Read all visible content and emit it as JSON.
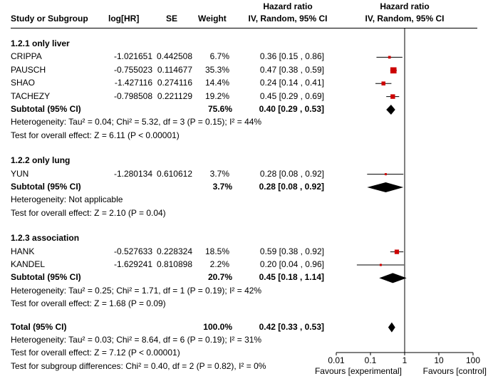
{
  "header": {
    "study": "Study or Subgroup",
    "loghr": "log[HR]",
    "se": "SE",
    "weight": "Weight",
    "hr_title": "Hazard ratio",
    "hr_sub": "IV, Random, 95% CI",
    "plot_title": "Hazard ratio",
    "plot_sub": "IV, Random, 95% CI"
  },
  "chart_data": {
    "type": "forest",
    "scale": "log",
    "xlim": [
      0.01,
      100
    ],
    "ticks": [
      0.01,
      0.1,
      1,
      10,
      100
    ],
    "tick_labels": [
      "0.01",
      "0.1",
      "1",
      "10",
      "100"
    ],
    "null_line": 1,
    "favours_left": "Favours [experimental]",
    "favours_right": "Favours [control]",
    "colors": {
      "study_marker": "#cc0000",
      "line": "#000000",
      "diamond": "#000000"
    },
    "subgroups": [
      {
        "title": "1.2.1 only liver",
        "studies": [
          {
            "name": "CRIPPA",
            "loghr": "-1.021651",
            "se": "0.442508",
            "weight_label": "6.7%",
            "ci_label": "0.36 [0.15 , 0.86]",
            "hr": 0.36,
            "lower": 0.15,
            "upper": 0.86,
            "weight": 6.7
          },
          {
            "name": "PAUSCH",
            "loghr": "-0.755023",
            "se": "0.114677",
            "weight_label": "35.3%",
            "ci_label": "0.47 [0.38 , 0.59]",
            "hr": 0.47,
            "lower": 0.38,
            "upper": 0.59,
            "weight": 35.3
          },
          {
            "name": "SHAO",
            "loghr": "-1.427116",
            "se": "0.274116",
            "weight_label": "14.4%",
            "ci_label": "0.24 [0.14 , 0.41]",
            "hr": 0.24,
            "lower": 0.14,
            "upper": 0.41,
            "weight": 14.4
          },
          {
            "name": "TACHEZY",
            "loghr": "-0.798508",
            "se": "0.221129",
            "weight_label": "19.2%",
            "ci_label": "0.45 [0.29 , 0.69]",
            "hr": 0.45,
            "lower": 0.29,
            "upper": 0.69,
            "weight": 19.2
          }
        ],
        "subtotal": {
          "label": "Subtotal (95% CI)",
          "weight_label": "75.6%",
          "ci_label": "0.40 [0.29 , 0.53]",
          "hr": 0.4,
          "lower": 0.29,
          "upper": 0.53
        },
        "heterogeneity": "Heterogeneity: Tau² = 0.04; Chi² = 5.32, df = 3 (P = 0.15); I² = 44%",
        "overall_effect": "Test for overall effect: Z = 6.11 (P < 0.00001)"
      },
      {
        "title": "1.2.2 only lung",
        "studies": [
          {
            "name": "YUN",
            "loghr": "-1.280134",
            "se": "0.610612",
            "weight_label": "3.7%",
            "ci_label": "0.28 [0.08 , 0.92]",
            "hr": 0.28,
            "lower": 0.08,
            "upper": 0.92,
            "weight": 3.7
          }
        ],
        "subtotal": {
          "label": "Subtotal (95% CI)",
          "weight_label": "3.7%",
          "ci_label": "0.28 [0.08 , 0.92]",
          "hr": 0.28,
          "lower": 0.08,
          "upper": 0.92
        },
        "heterogeneity": "Heterogeneity: Not applicable",
        "overall_effect": "Test for overall effect: Z = 2.10 (P = 0.04)"
      },
      {
        "title": "1.2.3 association",
        "studies": [
          {
            "name": "HANK",
            "loghr": "-0.527633",
            "se": "0.228324",
            "weight_label": "18.5%",
            "ci_label": "0.59 [0.38 , 0.92]",
            "hr": 0.59,
            "lower": 0.38,
            "upper": 0.92,
            "weight": 18.5
          },
          {
            "name": "KANDEL",
            "loghr": "-1.629241",
            "se": "0.810898",
            "weight_label": "2.2%",
            "ci_label": "0.20 [0.04 , 0.96]",
            "hr": 0.2,
            "lower": 0.04,
            "upper": 0.96,
            "weight": 2.2
          }
        ],
        "subtotal": {
          "label": "Subtotal (95% CI)",
          "weight_label": "20.7%",
          "ci_label": "0.45 [0.18 , 1.14]",
          "hr": 0.45,
          "lower": 0.18,
          "upper": 1.14
        },
        "heterogeneity": "Heterogeneity: Tau² = 0.25; Chi² = 1.71, df = 1 (P = 0.19); I² = 42%",
        "overall_effect": "Test for overall effect: Z = 1.68 (P = 0.09)"
      }
    ],
    "total": {
      "label": "Total (95% CI)",
      "weight_label": "100.0%",
      "ci_label": "0.42 [0.33 , 0.53]",
      "hr": 0.42,
      "lower": 0.33,
      "upper": 0.53,
      "heterogeneity": "Heterogeneity: Tau² = 0.03; Chi² = 8.64, df = 6 (P = 0.19); I² = 31%",
      "overall_effect": "Test for overall effect: Z = 7.12 (P < 0.00001)",
      "subgroup_differences": "Test for subgroup differences: Chi² = 0.40, df = 2 (P = 0.82), I² = 0%"
    }
  }
}
